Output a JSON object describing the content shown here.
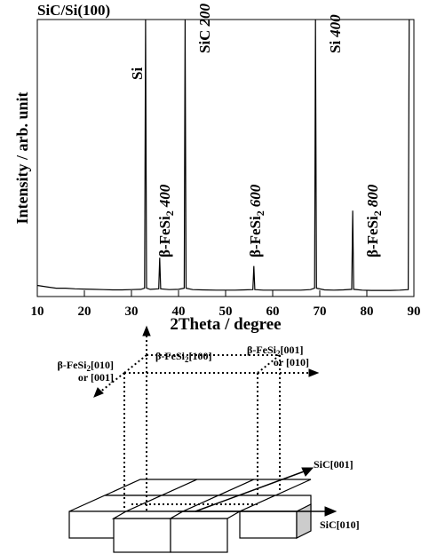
{
  "chart_data": {
    "type": "line",
    "title": "SiC/Si(100)",
    "x_label": "2Theta / degree",
    "y_label": "Intensity / arb. unit",
    "x": [
      10,
      12,
      14,
      16,
      18,
      20,
      22,
      24,
      26,
      28,
      30,
      32,
      32.8,
      33.0,
      33.2,
      34,
      35.8,
      36.0,
      36.2,
      38,
      40,
      41.2,
      41.4,
      41.6,
      43,
      45,
      48,
      50,
      52,
      54,
      55.8,
      56.0,
      56.2,
      58,
      60,
      62,
      64,
      66,
      68,
      68.9,
      69.1,
      69.3,
      71,
      73,
      75,
      76.8,
      77.0,
      77.2,
      79,
      81,
      83,
      85,
      87,
      88.8,
      89.0
    ],
    "values": [
      4,
      3.5,
      3,
      3,
      2.8,
      2.7,
      2.6,
      2.5,
      2.4,
      2.4,
      2.5,
      2.6,
      3,
      100,
      3,
      2.6,
      2.8,
      14,
      2.8,
      2.5,
      2.6,
      3,
      100,
      3,
      2.5,
      2.4,
      2.3,
      2.3,
      2.3,
      2.4,
      2.5,
      11,
      2.5,
      2.3,
      2.3,
      2.3,
      2.3,
      2.3,
      2.5,
      3,
      100,
      3,
      2.4,
      2.3,
      2.4,
      2.6,
      31,
      2.6,
      2.3,
      2.2,
      2.2,
      2.2,
      2.3,
      2.5,
      100
    ],
    "color": "#000000",
    "xlim": [
      10,
      90
    ],
    "xticks": [
      10,
      20,
      30,
      40,
      50,
      60,
      70,
      80,
      90
    ],
    "ylim": [
      0,
      100
    ],
    "annotations": [
      {
        "text": "Si"
      },
      {
        "text": "β-FeSi",
        "sub": "2",
        "hkl": "400"
      },
      {
        "text": "SiC",
        "hkl": "200"
      },
      {
        "text": "β-FeSi",
        "sub": "2",
        "hkl": "600"
      },
      {
        "text": "Si",
        "hkl": "400"
      },
      {
        "text": "β-FeSi",
        "sub": "2",
        "hkl": "800"
      }
    ]
  },
  "diagram": {
    "labels": [
      {
        "text": "β-FeSi",
        "sub": "2",
        "rest": "[100]"
      },
      {
        "text": "β-FeSi",
        "sub": "2",
        "rest": "[010]",
        "line2": "or [001]"
      },
      {
        "text": "β-FeSi",
        "sub": "2",
        "rest": "[001]",
        "line2": "or [010]"
      },
      {
        "text": "SiC[001]"
      },
      {
        "text": "SiC[010]"
      }
    ]
  }
}
